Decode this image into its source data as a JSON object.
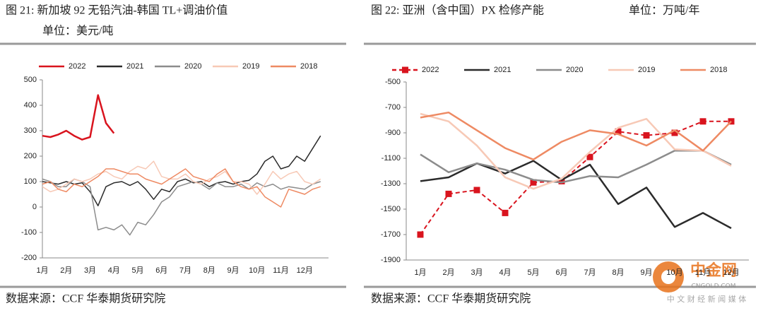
{
  "chart_data": [
    {
      "type": "line",
      "title": "图 21:  新加坡 92 无铅汽油-韩国 TL+调油价值",
      "subtitle": "单位：美元/吨",
      "categories": [
        "1月",
        null,
        null,
        "2月",
        null,
        null,
        "3月",
        null,
        null,
        "4月",
        null,
        null,
        "5月",
        null,
        null,
        "6月",
        null,
        null,
        "7月",
        null,
        null,
        "8月",
        null,
        null,
        "9月",
        null,
        null,
        "10月",
        null,
        null,
        "11月",
        null,
        null,
        "12月",
        null,
        null
      ],
      "ylim": [
        -200,
        500
      ],
      "yticks": [
        -200,
        -100,
        0,
        100,
        200,
        300,
        400,
        500
      ],
      "grid": false,
      "series": [
        {
          "name": "2022",
          "color": "#d9141e",
          "values": [
            280,
            275,
            285,
            300,
            280,
            265,
            275,
            440,
            330,
            290,
            null,
            null,
            null,
            null,
            null,
            null,
            null,
            null,
            null,
            null,
            null,
            null,
            null,
            null,
            null,
            null,
            null,
            null,
            null,
            null,
            null,
            null,
            null,
            null,
            null,
            null
          ]
        },
        {
          "name": "2021",
          "color": "#2b2b2b",
          "values": [
            100,
            95,
            90,
            100,
            90,
            95,
            60,
            5,
            80,
            95,
            100,
            85,
            100,
            70,
            30,
            70,
            60,
            100,
            110,
            95,
            100,
            80,
            95,
            100,
            90,
            100,
            105,
            130,
            180,
            200,
            150,
            160,
            200,
            180,
            230,
            280
          ]
        },
        {
          "name": "2020",
          "color": "#8c8c8c",
          "values": [
            110,
            100,
            80,
            80,
            110,
            100,
            80,
            -90,
            -80,
            -90,
            -70,
            -110,
            -60,
            -70,
            -30,
            20,
            40,
            80,
            90,
            100,
            90,
            70,
            95,
            80,
            80,
            90,
            70,
            95,
            80,
            90,
            70,
            80,
            75,
            70,
            90,
            100
          ]
        },
        {
          "name": "2019",
          "color": "#f7c9b6",
          "values": [
            80,
            60,
            70,
            90,
            110,
            100,
            110,
            130,
            140,
            120,
            110,
            140,
            160,
            150,
            180,
            120,
            110,
            110,
            130,
            100,
            90,
            110,
            120,
            140,
            100,
            100,
            90,
            50,
            90,
            140,
            110,
            130,
            140,
            100,
            90,
            110
          ]
        },
        {
          "name": "2018",
          "color": "#ee8a63",
          "values": [
            90,
            100,
            70,
            60,
            90,
            80,
            100,
            120,
            150,
            150,
            140,
            130,
            130,
            110,
            100,
            90,
            110,
            130,
            150,
            120,
            110,
            100,
            130,
            150,
            100,
            80,
            70,
            80,
            40,
            20,
            0,
            70,
            60,
            50,
            70,
            80
          ]
        }
      ],
      "source": "数据来源：CCF 华泰期货研究院"
    },
    {
      "type": "line",
      "title": "图 22:  亚洲（含中国）PX 检修产能",
      "subtitle": "单位：万吨/年",
      "categories": [
        "1月",
        "2月",
        "3月",
        "4月",
        "5月",
        "6月",
        "7月",
        "8月",
        "9月",
        "10月",
        "11月",
        "12月"
      ],
      "ylim": [
        -1900,
        -500
      ],
      "yticks": [
        -1900,
        -1700,
        -1500,
        -1300,
        -1100,
        -900,
        -700,
        -500
      ],
      "grid": false,
      "series": [
        {
          "name": "2022",
          "color": "#d9141e",
          "dashed": true,
          "marker": "square",
          "values": [
            -1700,
            -1380,
            -1350,
            -1530,
            -1290,
            -1280,
            -1090,
            -890,
            -920,
            -900,
            -810,
            -810
          ]
        },
        {
          "name": "2021",
          "color": "#2b2b2b",
          "values": [
            -1280,
            -1250,
            -1140,
            -1220,
            -1120,
            -1270,
            -1150,
            -1460,
            -1330,
            -1640,
            -1530,
            -1650
          ]
        },
        {
          "name": "2020",
          "color": "#8c8c8c",
          "values": [
            -1070,
            -1210,
            -1140,
            -1190,
            -1270,
            -1290,
            -1240,
            -1250,
            -1150,
            -1040,
            -1040,
            -1150
          ]
        },
        {
          "name": "2019",
          "color": "#f7c9b6",
          "values": [
            -750,
            -810,
            -1000,
            -1250,
            -1340,
            -1260,
            -1050,
            -860,
            -790,
            -1030,
            -1040,
            -1160
          ]
        },
        {
          "name": "2018",
          "color": "#ee8a63",
          "values": [
            -780,
            -740,
            -880,
            -1020,
            -1110,
            -970,
            -880,
            -910,
            -1000,
            -880,
            -1040,
            -810
          ]
        }
      ],
      "source": "数据来源：CCF 华泰期货研究院"
    }
  ],
  "watermark": {
    "name": "中金网",
    "site": "CNGOLD.COM",
    "tagline": "中 文 财 经 新 闻 媒 体"
  }
}
